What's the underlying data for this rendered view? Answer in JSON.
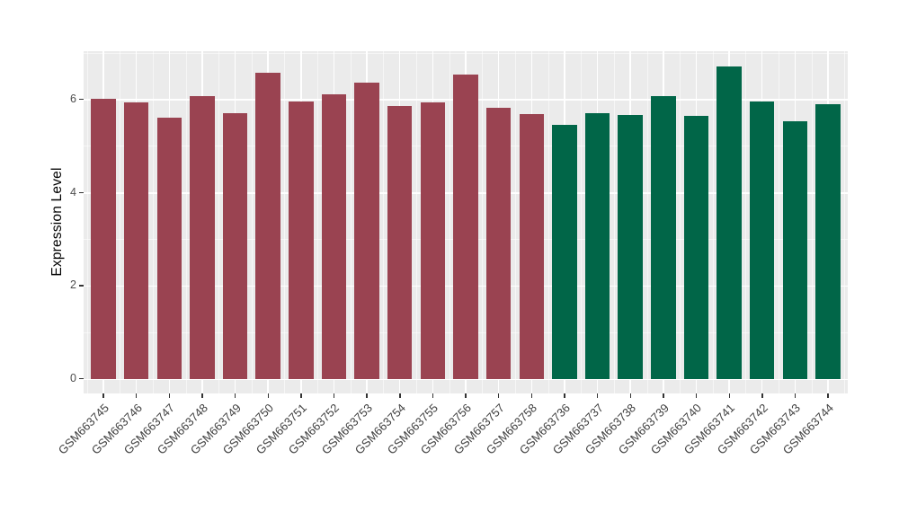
{
  "chart_data": {
    "type": "bar",
    "title": "",
    "ylabel": "Expression Level",
    "xlabel": "",
    "ylim": [
      -0.32,
      7.03
    ],
    "yticks": [
      0,
      2,
      4,
      6
    ],
    "minor_yticks": [
      1,
      3,
      5,
      7
    ],
    "grid": true,
    "legend_position": "none",
    "categories": [
      "GSM663745",
      "GSM663746",
      "GSM663747",
      "GSM663748",
      "GSM663749",
      "GSM663750",
      "GSM663751",
      "GSM663752",
      "GSM663753",
      "GSM663754",
      "GSM663755",
      "GSM663756",
      "GSM663757",
      "GSM663758",
      "GSM663736",
      "GSM663737",
      "GSM663738",
      "GSM663739",
      "GSM663740",
      "GSM663741",
      "GSM663742",
      "GSM663743",
      "GSM663744"
    ],
    "values": [
      6.0,
      5.93,
      5.61,
      6.07,
      5.7,
      6.57,
      5.96,
      6.11,
      6.36,
      5.86,
      5.93,
      6.53,
      5.82,
      5.68,
      5.45,
      5.7,
      5.67,
      6.07,
      5.64,
      6.7,
      5.96,
      5.52,
      5.9
    ],
    "groups": [
      "A",
      "A",
      "A",
      "A",
      "A",
      "A",
      "A",
      "A",
      "A",
      "A",
      "A",
      "A",
      "A",
      "A",
      "B",
      "B",
      "B",
      "B",
      "B",
      "B",
      "B",
      "B",
      "B"
    ],
    "group_colors": {
      "A": "#9A4351",
      "B": "#016648"
    },
    "style": {
      "panel_bg": "#EBEBEB",
      "grid_color": "#FFFFFF",
      "axis_title_color": "#000000",
      "tick_label_color": "#4D4D4D",
      "x_label_color": "#404040",
      "tick_mark_color": "#333333"
    }
  }
}
